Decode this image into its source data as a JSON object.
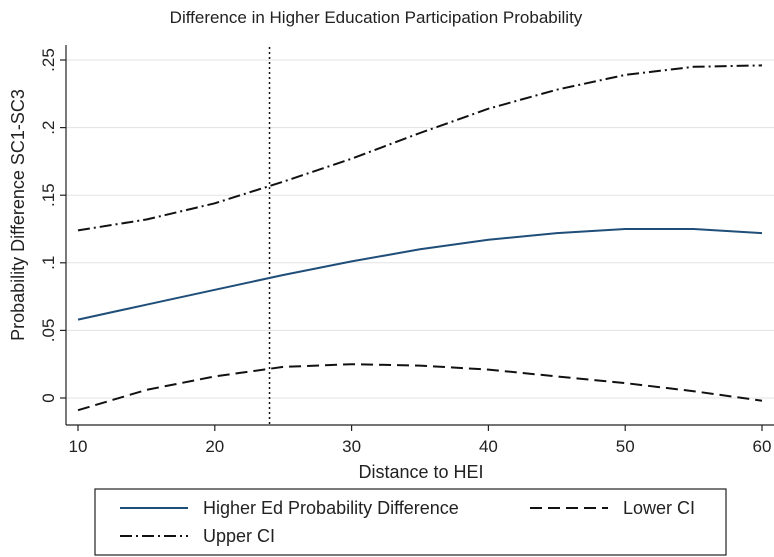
{
  "chart_data": {
    "type": "line",
    "title": "Difference in Higher Education Participation Probability",
    "xlabel": "Distance to HEI",
    "ylabel": "Probability Difference SC1-SC3",
    "xlim": [
      10,
      60
    ],
    "ylim": [
      -0.01,
      0.25
    ],
    "x_ticks": [
      10,
      20,
      30,
      40,
      50,
      60
    ],
    "y_ticks": [
      0,
      0.05,
      0.1,
      0.15,
      0.2,
      0.25
    ],
    "x_tick_labels": [
      "10",
      "20",
      "30",
      "40",
      "50",
      "60"
    ],
    "y_tick_labels": [
      "0",
      ".05",
      ".1",
      ".15",
      ".2",
      ".25"
    ],
    "grid": "horizontal",
    "reference_line": {
      "x": 24,
      "style": "dotted"
    },
    "legend_position": "bottom",
    "x": [
      10,
      15,
      20,
      25,
      30,
      35,
      40,
      45,
      50,
      55,
      60
    ],
    "series": [
      {
        "name": "Higher Ed Probability Difference",
        "style": "solid",
        "color": "#1f4e79",
        "values": [
          0.058,
          0.069,
          0.08,
          0.091,
          0.101,
          0.11,
          0.117,
          0.122,
          0.125,
          0.125,
          0.122
        ]
      },
      {
        "name": "Lower CI",
        "style": "dashed",
        "color": "#111111",
        "values": [
          -0.009,
          0.006,
          0.016,
          0.023,
          0.025,
          0.024,
          0.021,
          0.016,
          0.011,
          0.005,
          -0.002
        ]
      },
      {
        "name": "Upper CI",
        "style": "dashdot",
        "color": "#111111",
        "values": [
          0.124,
          0.132,
          0.144,
          0.16,
          0.177,
          0.196,
          0.214,
          0.228,
          0.239,
          0.245,
          0.246
        ]
      }
    ]
  }
}
